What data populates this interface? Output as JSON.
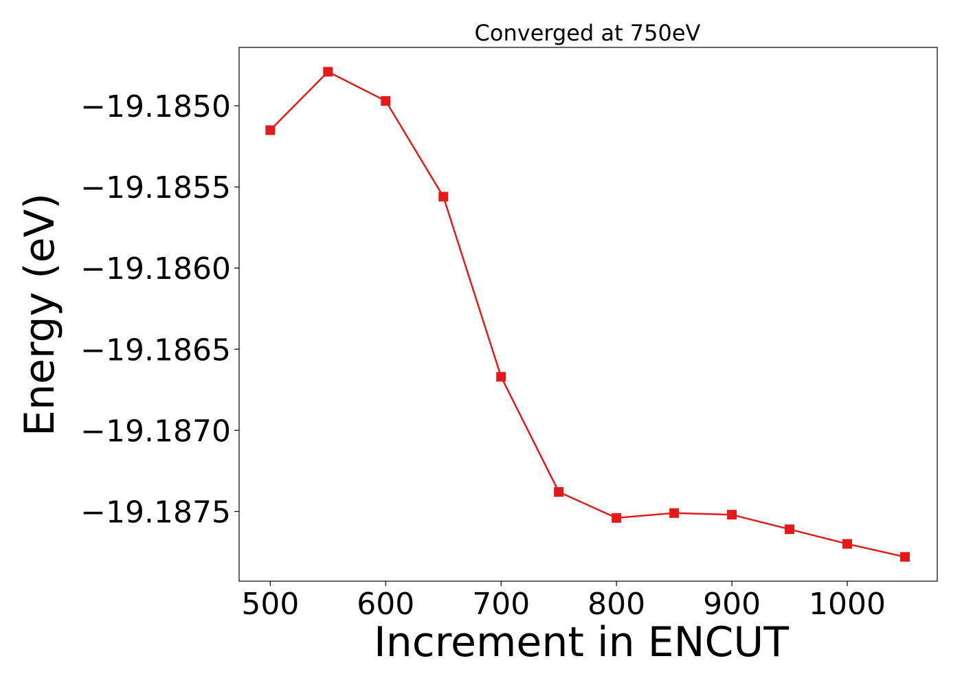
{
  "chart_data": {
    "type": "line",
    "title": "Converged at 750eV",
    "xlabel": "Increment in ENCUT",
    "ylabel": "Energy (eV)",
    "x": [
      500,
      550,
      600,
      650,
      700,
      750,
      800,
      850,
      900,
      950,
      1000,
      1050
    ],
    "series": [
      {
        "values": [
          -19.18515,
          -19.18479,
          -19.18497,
          -19.18556,
          -19.18667,
          -19.18738,
          -19.18754,
          -19.18751,
          -19.18752,
          -19.18761,
          -19.1877,
          -19.18778
        ]
      }
    ],
    "xlim": [
      473,
      1078
    ],
    "ylim": [
      -19.18793,
      -19.18464
    ],
    "xticks": [
      500,
      600,
      700,
      800,
      900,
      1000
    ],
    "xtick_labels": [
      "500",
      "600",
      "700",
      "800",
      "900",
      "1000"
    ],
    "yticks": [
      -19.185,
      -19.1855,
      -19.186,
      -19.1865,
      -19.187,
      -19.1875
    ],
    "ytick_labels": [
      "−19.1850",
      "−19.1855",
      "−19.1860",
      "−19.1865",
      "−19.1870",
      "−19.1875"
    ],
    "marker": "square",
    "color": "#e31a1c",
    "grid": false,
    "legend": false
  }
}
